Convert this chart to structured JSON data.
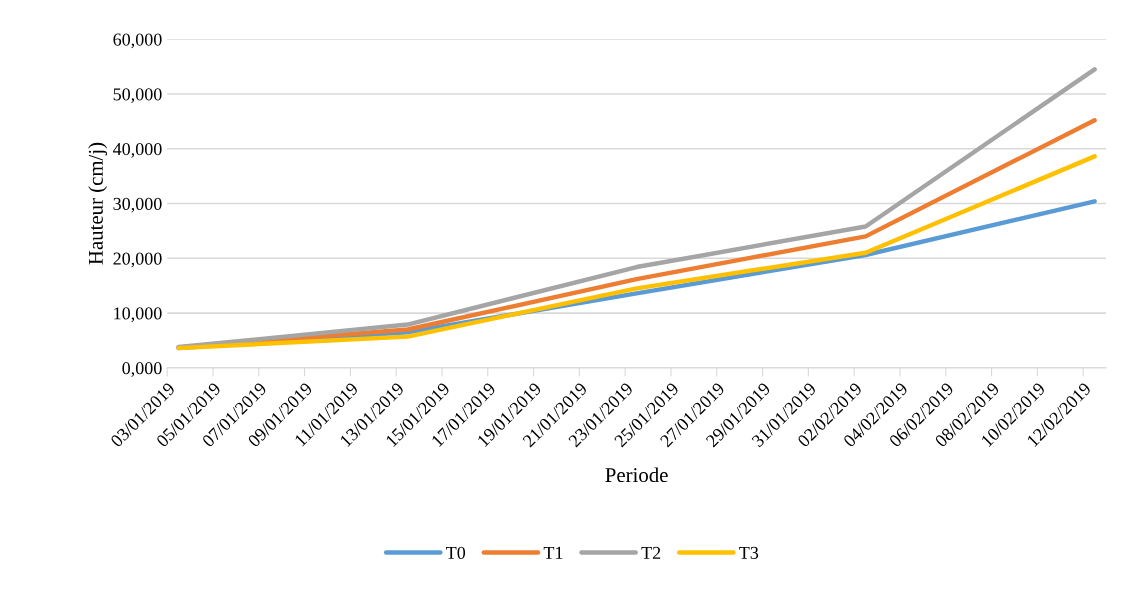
{
  "chart_data": {
    "type": "line",
    "xlabel": "Periode",
    "ylabel": "Hauteur (cm/j)",
    "x": [
      "2019-01-03T12:00",
      "2019-01-13T12:00",
      "2019-01-23T12:00",
      "2019-02-02T12:00",
      "2019-02-12T12:00"
    ],
    "series": [
      {
        "name": "T0",
        "color": "#5b9bd5",
        "values": [
          3600,
          6500,
          13600,
          20600,
          30400
        ]
      },
      {
        "name": "T1",
        "color": "#ed7d31",
        "values": [
          3700,
          7000,
          16200,
          24000,
          45200
        ]
      },
      {
        "name": "T2",
        "color": "#a5a5a5",
        "values": [
          3800,
          7900,
          18400,
          25800,
          54500
        ]
      },
      {
        "name": "T3",
        "color": "#ffc000",
        "values": [
          3600,
          5700,
          14500,
          21000,
          38600
        ]
      }
    ],
    "xlim": [
      "2019-01-03",
      "2019-02-13"
    ],
    "xticks": [
      {
        "value": "2019-01-03",
        "label": "03/01/2019"
      },
      {
        "value": "2019-01-05",
        "label": "05/01/2019"
      },
      {
        "value": "2019-01-07",
        "label": "07/01/2019"
      },
      {
        "value": "2019-01-09",
        "label": "09/01/2019"
      },
      {
        "value": "2019-01-11",
        "label": "11/01/2019"
      },
      {
        "value": "2019-01-13",
        "label": "13/01/2019"
      },
      {
        "value": "2019-01-15",
        "label": "15/01/2019"
      },
      {
        "value": "2019-01-17",
        "label": "17/01/2019"
      },
      {
        "value": "2019-01-19",
        "label": "19/01/2019"
      },
      {
        "value": "2019-01-21",
        "label": "21/01/2019"
      },
      {
        "value": "2019-01-23",
        "label": "23/01/2019"
      },
      {
        "value": "2019-01-25",
        "label": "25/01/2019"
      },
      {
        "value": "2019-01-27",
        "label": "27/01/2019"
      },
      {
        "value": "2019-01-29",
        "label": "29/01/2019"
      },
      {
        "value": "2019-01-31",
        "label": "31/01/2019"
      },
      {
        "value": "2019-02-02",
        "label": "02/02/2019"
      },
      {
        "value": "2019-02-04",
        "label": "04/02/2019"
      },
      {
        "value": "2019-02-06",
        "label": "06/02/2019"
      },
      {
        "value": "2019-02-08",
        "label": "08/02/2019"
      },
      {
        "value": "2019-02-10",
        "label": "10/02/2019"
      },
      {
        "value": "2019-02-12",
        "label": "12/02/2019"
      }
    ],
    "ylim": [
      0,
      60000
    ],
    "yticks": [
      {
        "value": 0,
        "label": "0,000"
      },
      {
        "value": 10000,
        "label": "10,000"
      },
      {
        "value": 20000,
        "label": "20,000"
      },
      {
        "value": 30000,
        "label": "30,000"
      },
      {
        "value": 40000,
        "label": "40,000"
      },
      {
        "value": 50000,
        "label": "50,000"
      },
      {
        "value": 60000,
        "label": "60,000"
      }
    ],
    "grid": "y",
    "legend": "bottom",
    "marker": "none",
    "line_style": "solid"
  }
}
